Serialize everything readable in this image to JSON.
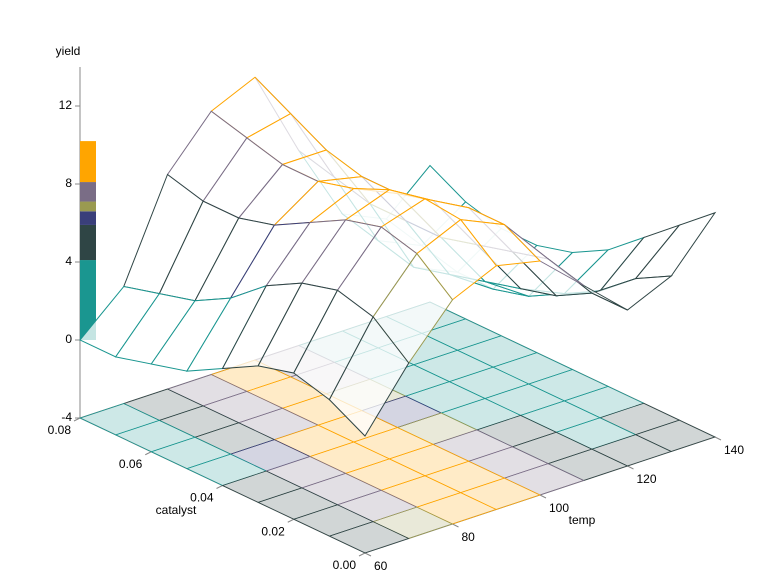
{
  "chart_data": {
    "type": "surface",
    "zlabel": "yield",
    "xlabel": "temp",
    "ylabel": "catalyst",
    "x": [
      60,
      70,
      80,
      90,
      100,
      110,
      120,
      130,
      140
    ],
    "y": [
      0,
      0.01,
      0.02,
      0.03,
      0.04,
      0.05,
      0.06,
      0.07,
      0.08
    ],
    "z": [
      [
        2,
        5,
        7.5,
        8.5,
        8,
        6,
        4,
        5,
        7.5
      ],
      [
        3,
        6.5,
        9,
        10,
        9,
        6.5,
        4,
        4,
        6
      ],
      [
        3.5,
        7,
        9.5,
        10.2,
        9,
        6,
        3,
        2.5,
        4.5
      ],
      [
        3,
        6.5,
        9,
        9.8,
        8.5,
        5.5,
        2.5,
        1.5,
        3
      ],
      [
        2,
        5.5,
        8,
        9,
        8,
        5,
        2,
        0.5,
        2
      ],
      [
        1,
        4,
        7,
        8.5,
        8,
        5,
        1.5,
        0,
        1.5
      ],
      [
        0.5,
        3,
        6.5,
        8.5,
        8.5,
        5,
        1,
        0,
        1.5
      ],
      [
        0,
        2.5,
        6.5,
        9,
        9.5,
        5.5,
        1.5,
        0.5,
        2
      ],
      [
        0,
        2,
        7,
        9.5,
        10.5,
        6,
        2,
        1,
        3
      ]
    ],
    "xlim": [
      60,
      140
    ],
    "xticks": [
      60,
      80,
      100,
      120,
      140
    ],
    "ylim": [
      0,
      0.08
    ],
    "yticks": [
      {
        "value": 0,
        "label": "0.00"
      },
      0.02,
      0.04,
      0.06,
      0.08
    ],
    "zlim": [
      -4,
      14
    ],
    "zticks": [
      -4,
      0,
      4,
      8,
      12
    ],
    "color_levels": [
      0,
      4.1,
      5.9,
      6.6,
      7.1,
      8.1,
      10.2
    ],
    "colors": [
      "#1a9690",
      "#2f4545",
      "#3a3f7a",
      "#9a9a50",
      "#7a6d86",
      "#ffa500"
    ],
    "floor_projection": true
  }
}
